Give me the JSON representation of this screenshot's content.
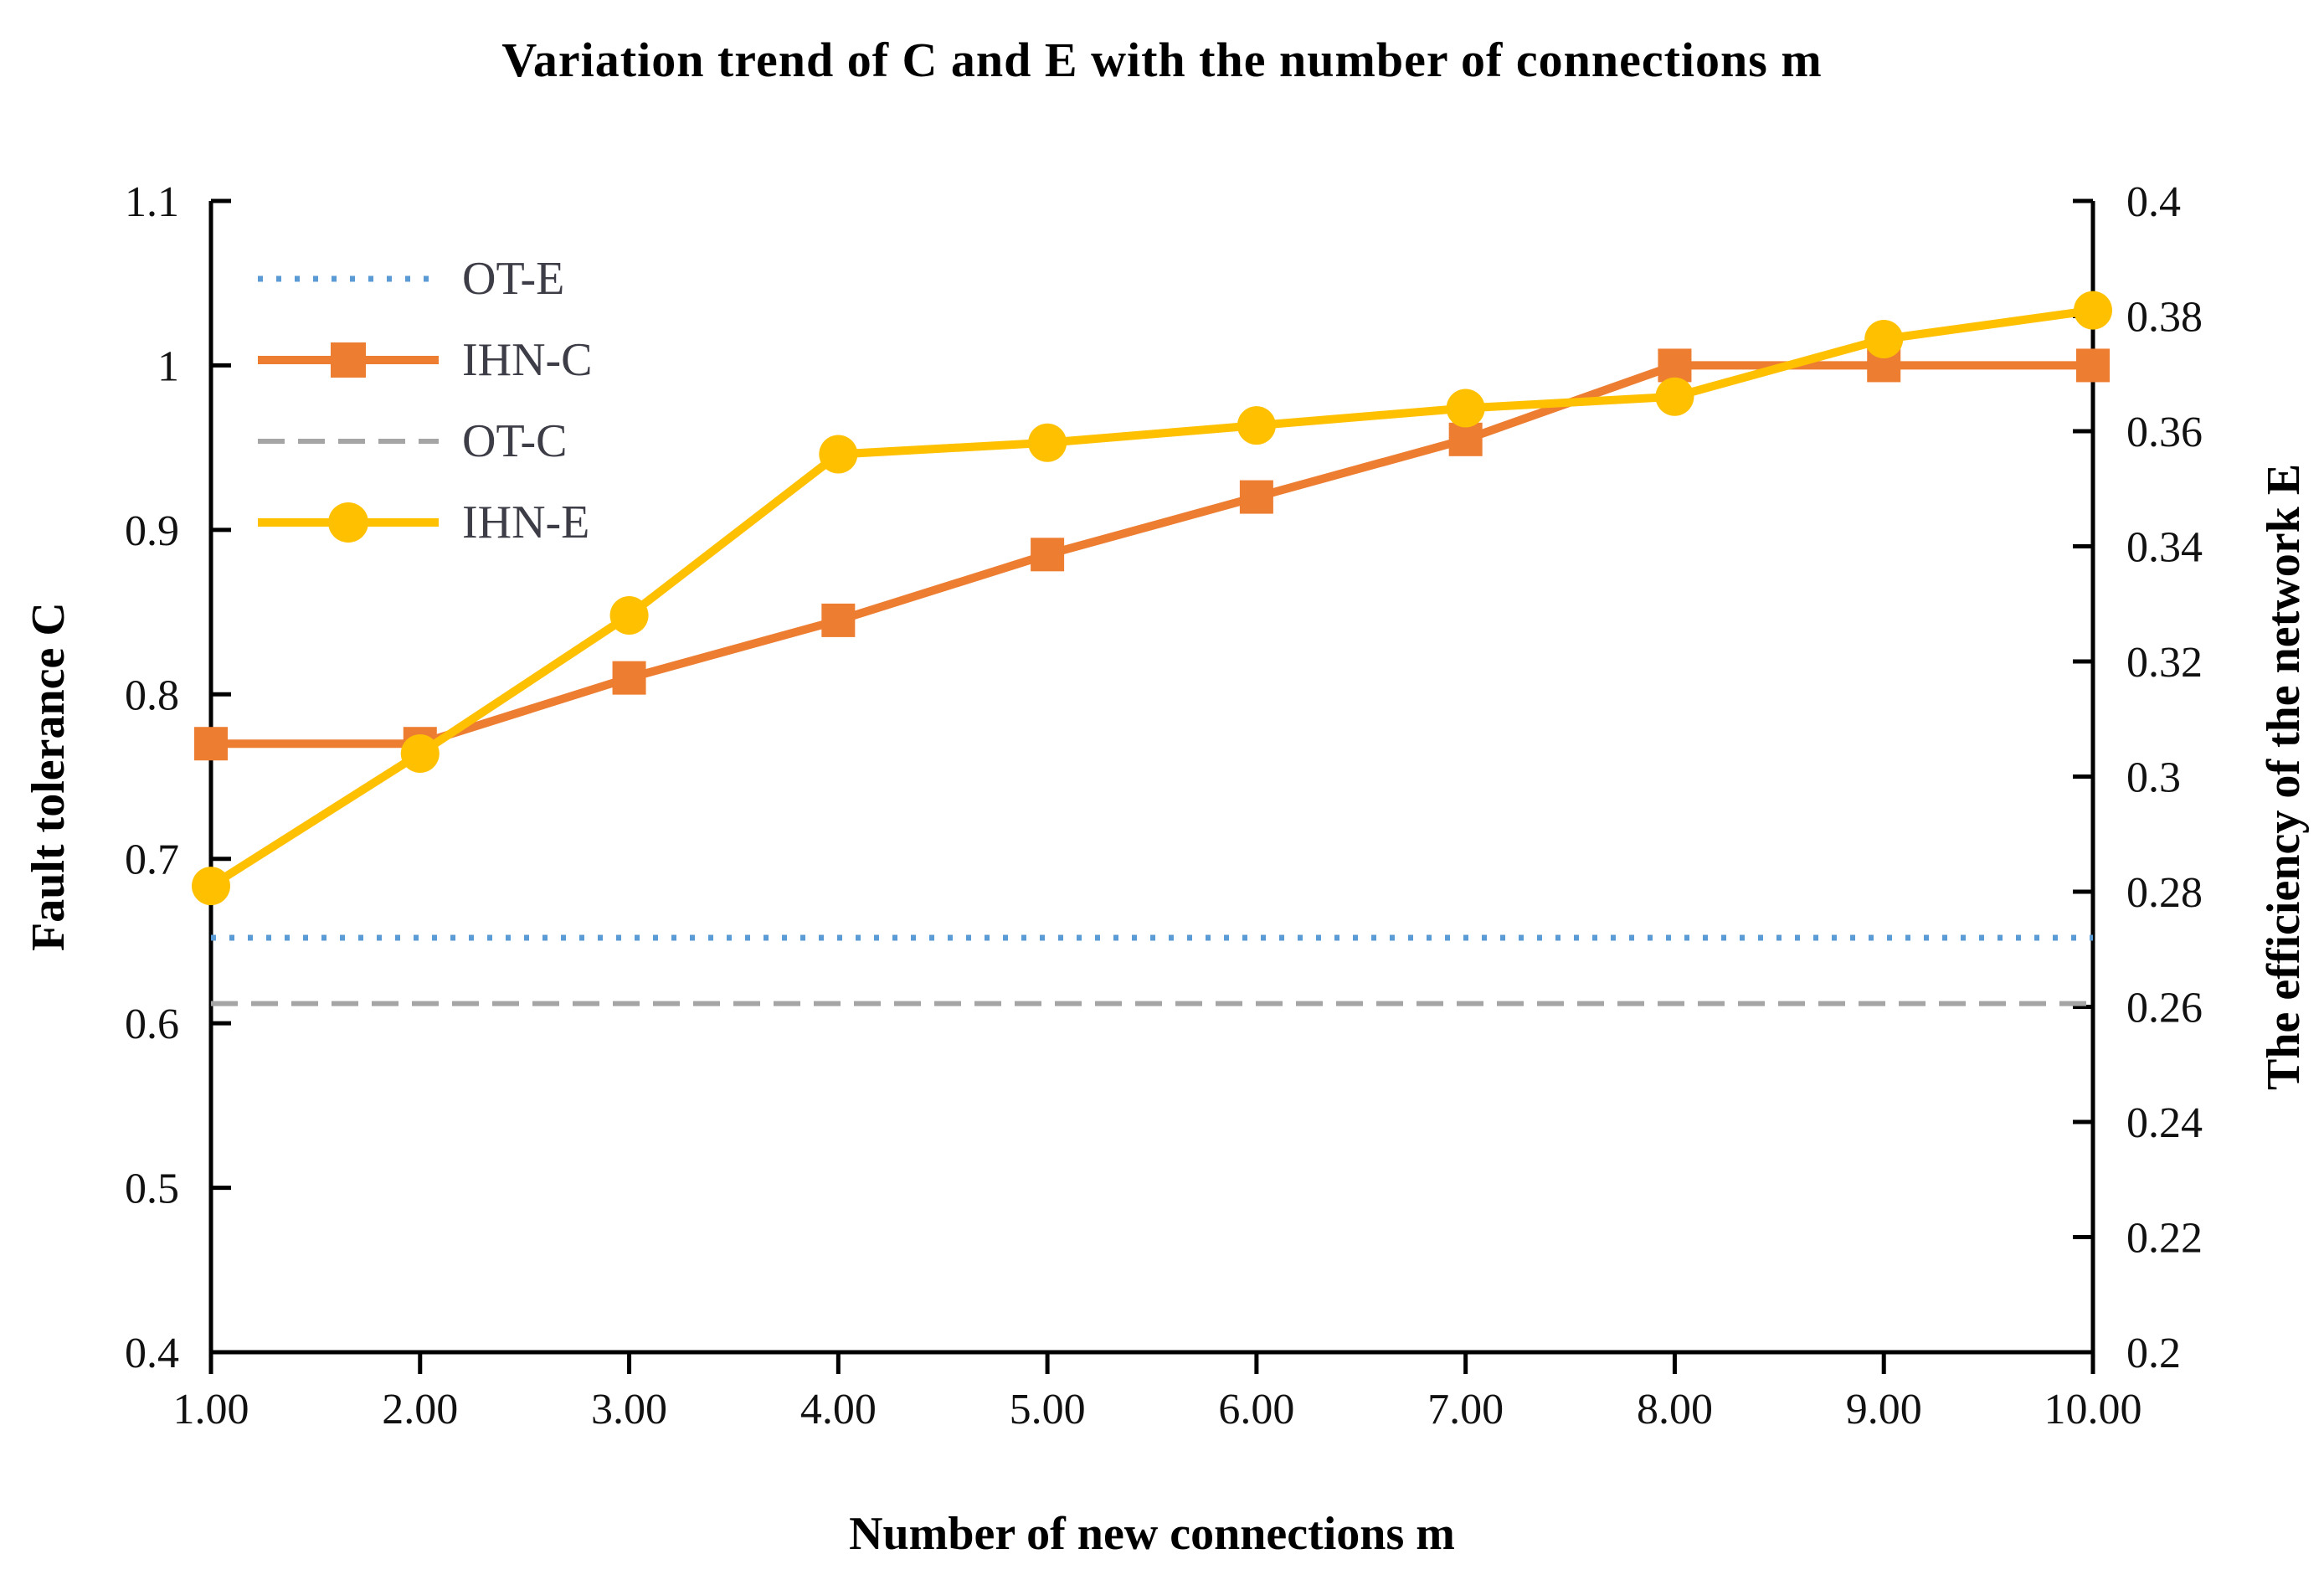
{
  "title": "Variation trend of C and E with the number of connections m",
  "axes": {
    "x": {
      "title": "Number of new connections m",
      "min": 1,
      "max": 10,
      "step": 1,
      "tick_labels": [
        "1.00",
        "2.00",
        "3.00",
        "4.00",
        "5.00",
        "6.00",
        "7.00",
        "8.00",
        "9.00",
        "10.00"
      ]
    },
    "y_left": {
      "title": "Fault tolerance C",
      "min": 0.4,
      "max": 1.1,
      "step": 0.1,
      "tick_labels_top_to_bottom": [
        "1.1",
        "1",
        "0.9",
        "0.8",
        "0.7",
        "0.6",
        "0.5",
        "0.4"
      ]
    },
    "y_right": {
      "title": "The efficiency of the network E",
      "min": 0.2,
      "max": 0.4,
      "step": 0.02,
      "tick_labels_top_to_bottom": [
        "0.4",
        "0.38",
        "0.36",
        "0.34",
        "0.32",
        "0.3",
        "0.28",
        "0.26",
        "0.24",
        "0.22",
        "0.2"
      ]
    }
  },
  "legend": {
    "position": "top-left-inside",
    "items": [
      {
        "label": "OT-E",
        "color": "#5B9BD5",
        "style": "dotted",
        "marker": "none"
      },
      {
        "label": "IHN-C",
        "color": "#ED7D31",
        "style": "solid",
        "marker": "square"
      },
      {
        "label": "OT-C",
        "color": "#A5A5A5",
        "style": "dashed",
        "marker": "none"
      },
      {
        "label": "IHN-E",
        "color": "#FFC000",
        "style": "solid",
        "marker": "circle"
      }
    ]
  },
  "colors": {
    "ot_e_blue": "#5B9BD5",
    "ihn_c_orange": "#ED7D31",
    "ot_c_gray": "#A5A5A5",
    "ihn_e_gold": "#FFC000",
    "axis_black": "#000000"
  },
  "chart_data": {
    "type": "line",
    "x": [
      1,
      2,
      3,
      4,
      5,
      6,
      7,
      8,
      9,
      10
    ],
    "x_tick_labels": [
      "1.00",
      "2.00",
      "3.00",
      "4.00",
      "5.00",
      "6.00",
      "7.00",
      "8.00",
      "9.00",
      "10.00"
    ],
    "title": "Variation trend of C and E with the number of connections m",
    "xlabel": "Number of new connections m",
    "ylabel_left": "Fault tolerance C",
    "ylabel_right": "The efficiency of the network E",
    "ylim_left": [
      0.4,
      1.1
    ],
    "ylim_right": [
      0.2,
      0.4
    ],
    "grid": false,
    "legend_position": "top-left-inside",
    "series": [
      {
        "name": "OT-E",
        "axis": "right",
        "style": "dotted",
        "marker": "none",
        "color": "#5B9BD5",
        "constant": true,
        "values": [
          0.272,
          0.272,
          0.272,
          0.272,
          0.272,
          0.272,
          0.272,
          0.272,
          0.272,
          0.272
        ]
      },
      {
        "name": "IHN-C",
        "axis": "left",
        "style": "solid",
        "marker": "square",
        "color": "#ED7D31",
        "constant": false,
        "values": [
          0.77,
          0.77,
          0.81,
          0.845,
          0.885,
          0.92,
          0.955,
          1.0,
          1.0,
          1.0
        ]
      },
      {
        "name": "OT-C",
        "axis": "left",
        "style": "dashed",
        "marker": "none",
        "color": "#A5A5A5",
        "constant": true,
        "values": [
          0.612,
          0.612,
          0.612,
          0.612,
          0.612,
          0.612,
          0.612,
          0.612,
          0.612,
          0.612
        ]
      },
      {
        "name": "IHN-E",
        "axis": "right",
        "style": "solid",
        "marker": "circle",
        "color": "#FFC000",
        "constant": false,
        "values": [
          0.281,
          0.304,
          0.328,
          0.356,
          0.358,
          0.361,
          0.364,
          0.366,
          0.376,
          0.381
        ]
      }
    ]
  }
}
